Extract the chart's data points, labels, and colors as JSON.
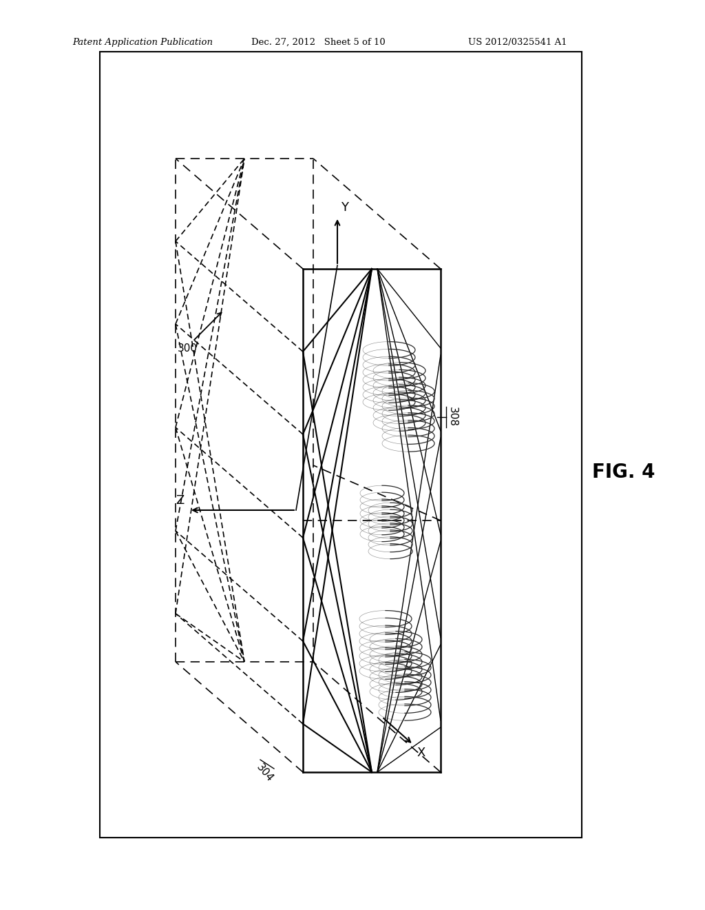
{
  "header_left": "Patent Application Publication",
  "header_mid": "Dec. 27, 2012   Sheet 5 of 10",
  "header_right": "US 2012/0325541 A1",
  "fig_label": "FIG. 4",
  "ref_300": "300",
  "ref_304": "304",
  "ref_308": "308",
  "axis_x": "X",
  "axis_y": "Y",
  "axis_z": "Z",
  "bg_color": "#ffffff",
  "line_color": "#000000"
}
